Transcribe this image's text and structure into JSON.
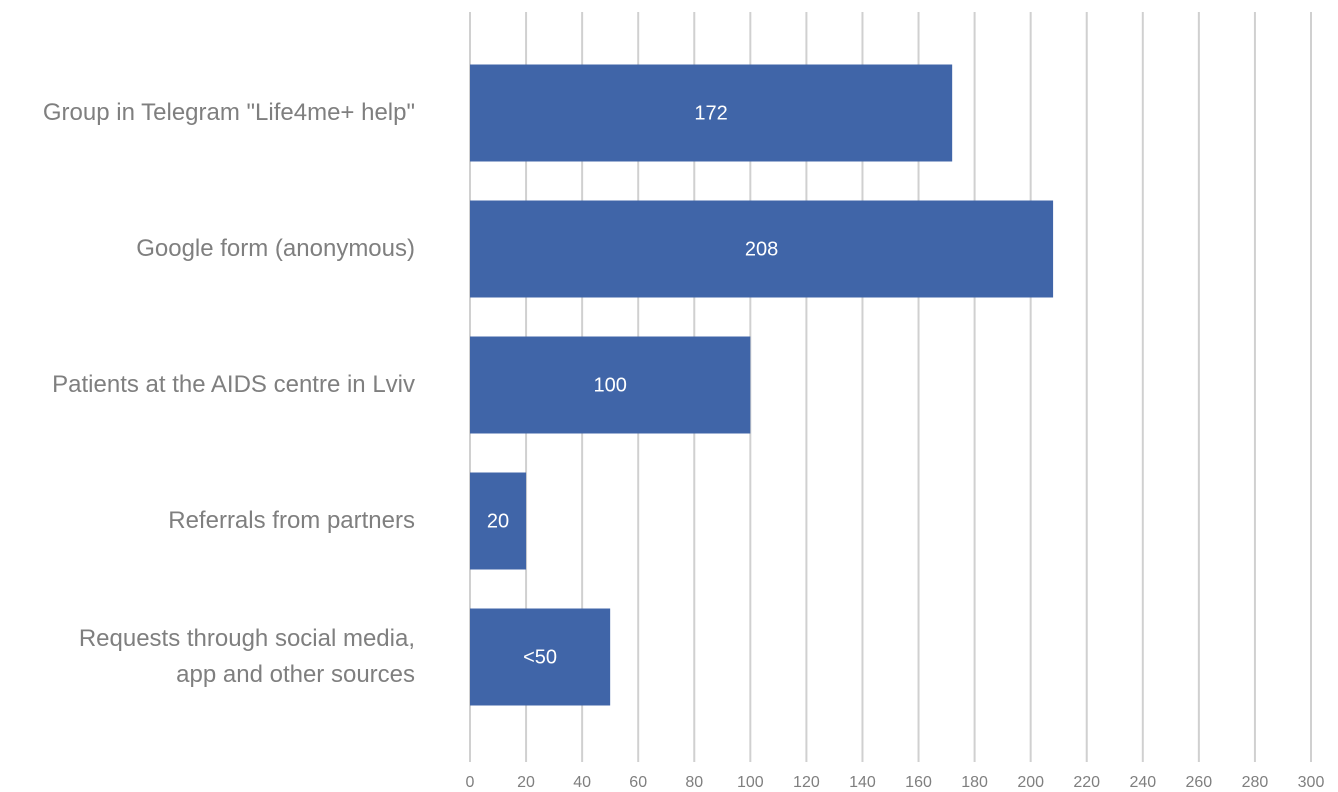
{
  "chart_data": {
    "type": "bar",
    "orientation": "horizontal",
    "categories": [
      "Group in Telegram \"Life4me+ help\"",
      "Google form (anonymous)",
      "Patients at the AIDS centre in Lviv",
      "Referrals from partners",
      "Requests through social media,\napp and other sources"
    ],
    "values": [
      172,
      208,
      100,
      20,
      50
    ],
    "value_labels": [
      "172",
      "208",
      "100",
      "20",
      "<50"
    ],
    "color": "#4065a8",
    "xlim": [
      0,
      300
    ],
    "xticks": [
      0,
      20,
      40,
      60,
      80,
      100,
      120,
      140,
      160,
      180,
      200,
      220,
      240,
      260,
      280,
      300
    ],
    "grid": true
  }
}
